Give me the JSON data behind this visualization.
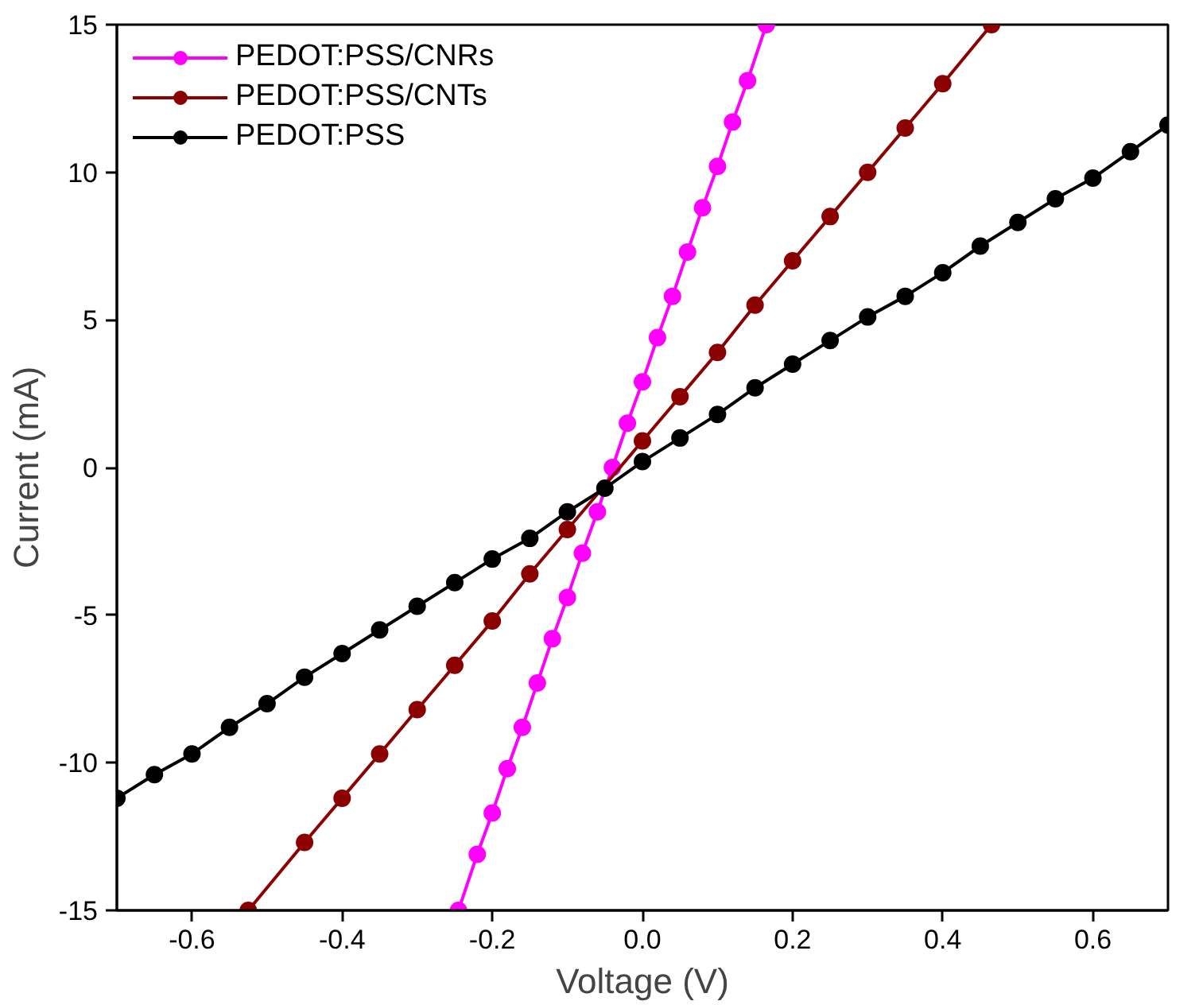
{
  "chart_data": {
    "type": "line",
    "xlabel": "Voltage (V)",
    "ylabel": "Current (mA)",
    "xlim": [
      -0.7,
      0.7
    ],
    "ylim": [
      -15,
      15
    ],
    "xticks": [
      -0.6,
      -0.4,
      -0.2,
      {
        "value": 0.0,
        "label": "0.0"
      },
      0.2,
      0.4,
      0.6
    ],
    "yticks": [
      -15,
      -10,
      -5,
      0,
      5,
      10,
      15
    ],
    "grid": false,
    "legend": "top left",
    "marker": "circle",
    "line_style": "solid",
    "series": [
      {
        "name": "PEDOT:PSS/CNRs",
        "color": "#ff00ff",
        "x": [
          -0.245,
          -0.22,
          -0.2,
          -0.18,
          -0.16,
          -0.14,
          -0.12,
          -0.1,
          -0.08,
          -0.06,
          -0.04,
          -0.02,
          0.0,
          0.02,
          0.04,
          0.06,
          0.08,
          0.1,
          0.12,
          0.14,
          0.165
        ],
        "values": [
          -15.0,
          -13.1,
          -11.7,
          -10.2,
          -8.8,
          -7.3,
          -5.8,
          -4.4,
          -2.9,
          -1.5,
          0.0,
          1.5,
          2.9,
          4.4,
          5.8,
          7.3,
          8.8,
          10.2,
          11.7,
          13.1,
          15.0
        ]
      },
      {
        "name": "PEDOT:PSS/CNTs",
        "color": "#8b0000",
        "x": [
          -0.525,
          -0.45,
          -0.4,
          -0.35,
          -0.3,
          -0.25,
          -0.2,
          -0.15,
          -0.1,
          0.0,
          0.05,
          0.1,
          0.15,
          0.2,
          0.25,
          0.3,
          0.35,
          0.4,
          0.465
        ],
        "values": [
          -15.0,
          -12.7,
          -11.2,
          -9.7,
          -8.2,
          -6.7,
          -5.2,
          -3.6,
          -2.1,
          0.9,
          2.4,
          3.9,
          5.5,
          7.0,
          8.5,
          10.0,
          11.5,
          13.0,
          15.0
        ]
      },
      {
        "name": "PEDOT:PSS",
        "color": "#000000",
        "x": [
          -0.7,
          -0.65,
          -0.6,
          -0.55,
          -0.5,
          -0.45,
          -0.4,
          -0.35,
          -0.3,
          -0.25,
          -0.2,
          -0.15,
          -0.1,
          -0.05,
          0.0,
          0.05,
          0.1,
          0.15,
          0.2,
          0.25,
          0.3,
          0.35,
          0.4,
          0.45,
          0.5,
          0.55,
          0.6,
          0.65,
          0.7
        ],
        "values": [
          -11.2,
          -10.4,
          -9.7,
          -8.8,
          -8.0,
          -7.1,
          -6.3,
          -5.5,
          -4.7,
          -3.9,
          -3.1,
          -2.4,
          -1.5,
          -0.7,
          0.2,
          1.0,
          1.8,
          2.7,
          3.5,
          4.3,
          5.1,
          5.8,
          6.6,
          7.5,
          8.3,
          9.1,
          9.8,
          10.7,
          11.6
        ]
      }
    ]
  }
}
